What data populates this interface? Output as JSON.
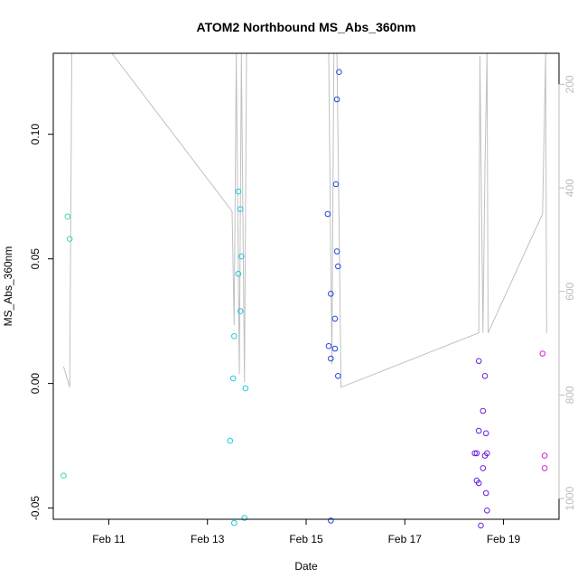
{
  "chart_data": {
    "type": "scatter",
    "title": "ATOM2 Northbound MS_Abs_360nm",
    "xlabel": "Date",
    "ylabel": "MS_Abs_360nm",
    "x_unit": "date",
    "xlim": [
      "2025-02-09 21:00",
      "2025-02-20 03:00"
    ],
    "ylim": [
      -0.0545,
      0.1325
    ],
    "x_ticks": [
      {
        "label": "Feb 11",
        "value": "2025-02-11 00:00"
      },
      {
        "label": "Feb 13",
        "value": "2025-02-13 00:00"
      },
      {
        "label": "Feb 15",
        "value": "2025-02-15 00:00"
      },
      {
        "label": "Feb 17",
        "value": "2025-02-17 00:00"
      },
      {
        "label": "Feb 19",
        "value": "2025-02-19 00:00"
      }
    ],
    "y_ticks": [
      -0.05,
      0.0,
      0.05,
      0.1
    ],
    "y_tick_labels": [
      "-0.05",
      "0.00",
      "0.05",
      "0.10"
    ],
    "y2lim": [
      1040,
      140
    ],
    "y2_ticks": [
      200,
      400,
      600,
      800,
      1000
    ],
    "y2_tick_labels": [
      "200",
      "400",
      "600",
      "800",
      "1000"
    ],
    "grid": false,
    "line_series": {
      "color": "#c0c0c0",
      "points": [
        [
          "2025-02-10 02:00",
          745
        ],
        [
          "2025-02-10 05:00",
          785
        ],
        [
          "2025-02-10 06:00",
          140
        ],
        [
          "2025-02-11 01:30",
          140
        ],
        [
          "2025-02-13 12:00",
          445
        ],
        [
          "2025-02-13 13:00",
          665
        ],
        [
          "2025-02-13 14:00",
          140
        ],
        [
          "2025-02-13 15:30",
          760
        ],
        [
          "2025-02-13 16:30",
          140
        ],
        [
          "2025-02-13 18:00",
          775
        ],
        [
          "2025-02-13 19:00",
          140
        ],
        [
          "2025-02-15 11:00",
          140
        ],
        [
          "2025-02-15 12:30",
          740
        ],
        [
          "2025-02-15 13:30",
          140
        ],
        [
          "2025-02-15 15:00",
          140
        ],
        [
          "2025-02-15 17:00",
          785
        ],
        [
          "2025-02-18 12:00",
          680
        ],
        [
          "2025-02-18 12:30",
          145
        ],
        [
          "2025-02-18 14:00",
          680
        ],
        [
          "2025-02-18 15:00",
          360
        ],
        [
          "2025-02-18 16:00",
          140
        ],
        [
          "2025-02-18 16:30",
          680
        ],
        [
          "2025-02-19 19:00",
          450
        ],
        [
          "2025-02-19 20:30",
          140
        ],
        [
          "2025-02-19 21:00",
          680
        ]
      ]
    },
    "points": [
      {
        "x": "2025-02-10 02:00",
        "y": -0.037,
        "color": "#33ddaa"
      },
      {
        "x": "2025-02-10 04:00",
        "y": 0.067,
        "color": "#33ddaa"
      },
      {
        "x": "2025-02-10 05:00",
        "y": 0.058,
        "color": "#33ddaa"
      },
      {
        "x": "2025-02-13 11:00",
        "y": -0.023,
        "color": "#22c8dd"
      },
      {
        "x": "2025-02-13 12:30",
        "y": 0.002,
        "color": "#22c8dd"
      },
      {
        "x": "2025-02-13 13:00",
        "y": 0.019,
        "color": "#22c8dd"
      },
      {
        "x": "2025-02-13 13:00",
        "y": -0.056,
        "color": "#22c8dd"
      },
      {
        "x": "2025-02-13 15:00",
        "y": 0.077,
        "color": "#22c8dd"
      },
      {
        "x": "2025-02-13 15:00",
        "y": 0.044,
        "color": "#22c8dd"
      },
      {
        "x": "2025-02-13 16:00",
        "y": 0.07,
        "color": "#22c8dd"
      },
      {
        "x": "2025-02-13 16:00",
        "y": 0.029,
        "color": "#22c8dd"
      },
      {
        "x": "2025-02-13 16:30",
        "y": 0.051,
        "color": "#22c8dd"
      },
      {
        "x": "2025-02-13 18:00",
        "y": -0.054,
        "color": "#22c8dd"
      },
      {
        "x": "2025-02-13 18:30",
        "y": -0.002,
        "color": "#22c8dd"
      },
      {
        "x": "2025-02-15 10:30",
        "y": 0.068,
        "color": "#1f49e0"
      },
      {
        "x": "2025-02-15 11:00",
        "y": 0.015,
        "color": "#1f49e0"
      },
      {
        "x": "2025-02-15 12:00",
        "y": 0.036,
        "color": "#1f49e0"
      },
      {
        "x": "2025-02-15 12:00",
        "y": 0.01,
        "color": "#1f49e0"
      },
      {
        "x": "2025-02-15 12:00",
        "y": -0.055,
        "color": "#1f49e0"
      },
      {
        "x": "2025-02-15 14:00",
        "y": 0.026,
        "color": "#1f49e0"
      },
      {
        "x": "2025-02-15 14:00",
        "y": 0.014,
        "color": "#1f49e0"
      },
      {
        "x": "2025-02-15 14:30",
        "y": 0.08,
        "color": "#1f49e0"
      },
      {
        "x": "2025-02-15 15:00",
        "y": 0.114,
        "color": "#1f49e0"
      },
      {
        "x": "2025-02-15 15:00",
        "y": 0.053,
        "color": "#1f49e0"
      },
      {
        "x": "2025-02-15 15:30",
        "y": 0.047,
        "color": "#1f49e0"
      },
      {
        "x": "2025-02-15 15:30",
        "y": 0.003,
        "color": "#1f49e0"
      },
      {
        "x": "2025-02-15 16:00",
        "y": 0.125,
        "color": "#1f49e0"
      },
      {
        "x": "2025-02-18 10:00",
        "y": -0.028,
        "color": "#6a1fdc"
      },
      {
        "x": "2025-02-18 11:00",
        "y": -0.028,
        "color": "#6a1fdc"
      },
      {
        "x": "2025-02-18 11:00",
        "y": -0.039,
        "color": "#6a1fdc"
      },
      {
        "x": "2025-02-18 12:00",
        "y": 0.009,
        "color": "#6a1fdc"
      },
      {
        "x": "2025-02-18 12:00",
        "y": -0.019,
        "color": "#6a1fdc"
      },
      {
        "x": "2025-02-18 12:00",
        "y": -0.04,
        "color": "#6a1fdc"
      },
      {
        "x": "2025-02-18 13:00",
        "y": -0.057,
        "color": "#6a1fdc"
      },
      {
        "x": "2025-02-18 14:00",
        "y": -0.011,
        "color": "#6a1fdc"
      },
      {
        "x": "2025-02-18 14:00",
        "y": -0.034,
        "color": "#6a1fdc"
      },
      {
        "x": "2025-02-18 15:00",
        "y": -0.029,
        "color": "#6a1fdc"
      },
      {
        "x": "2025-02-18 15:00",
        "y": 0.003,
        "color": "#6a1fdc"
      },
      {
        "x": "2025-02-18 15:30",
        "y": -0.02,
        "color": "#6a1fdc"
      },
      {
        "x": "2025-02-18 15:30",
        "y": -0.044,
        "color": "#6a1fdc"
      },
      {
        "x": "2025-02-18 16:00",
        "y": -0.028,
        "color": "#6a1fdc"
      },
      {
        "x": "2025-02-18 16:00",
        "y": -0.051,
        "color": "#6a1fdc"
      },
      {
        "x": "2025-02-19 19:00",
        "y": 0.012,
        "color": "#d11fd8"
      },
      {
        "x": "2025-02-19 20:00",
        "y": -0.029,
        "color": "#d11fd8"
      },
      {
        "x": "2025-02-19 20:00",
        "y": -0.034,
        "color": "#d11fd8"
      }
    ]
  }
}
